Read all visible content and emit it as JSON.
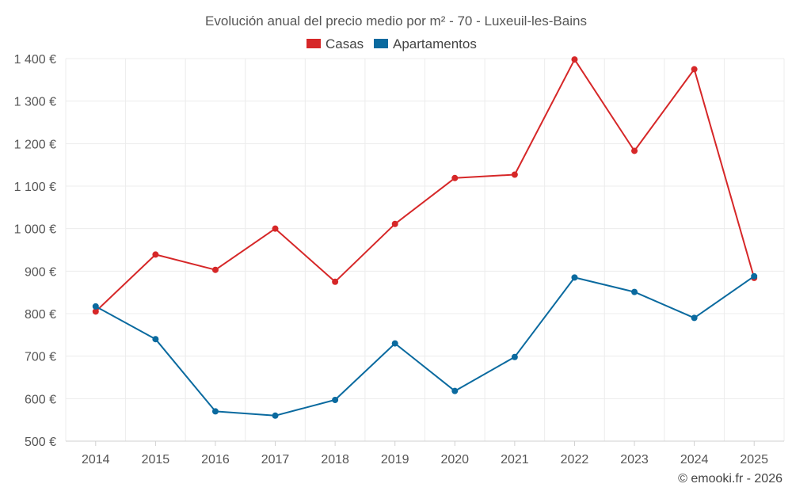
{
  "chart_data": {
    "type": "line",
    "title": "Evolución anual del precio medio por m² - 70 - Luxeuil-les-Bains",
    "categories": [
      "2014",
      "2015",
      "2016",
      "2017",
      "2018",
      "2019",
      "2020",
      "2021",
      "2022",
      "2023",
      "2024",
      "2025"
    ],
    "series": [
      {
        "name": "Casas",
        "color": "#d62728",
        "values": [
          805,
          939,
          903,
          1000,
          875,
          1011,
          1119,
          1127,
          1398,
          1183,
          1375,
          884
        ]
      },
      {
        "name": "Apartamentos",
        "color": "#0a6a9f",
        "values": [
          817,
          740,
          570,
          560,
          597,
          730,
          618,
          698,
          885,
          851,
          790,
          888
        ]
      }
    ],
    "ylim": [
      500,
      1400
    ],
    "yticks": [
      500,
      600,
      700,
      800,
      900,
      1000,
      1100,
      1200,
      1300,
      1400
    ],
    "ytick_labels": [
      "500 €",
      "600 €",
      "700 €",
      "800 €",
      "900 €",
      "1 000 €",
      "1 100 €",
      "1 200 €",
      "1 300 €",
      "1 400 €"
    ],
    "xlabel": "",
    "ylabel": "",
    "legend_position": "top-center",
    "grid": true
  },
  "credit": "© emooki.fr - 2026"
}
